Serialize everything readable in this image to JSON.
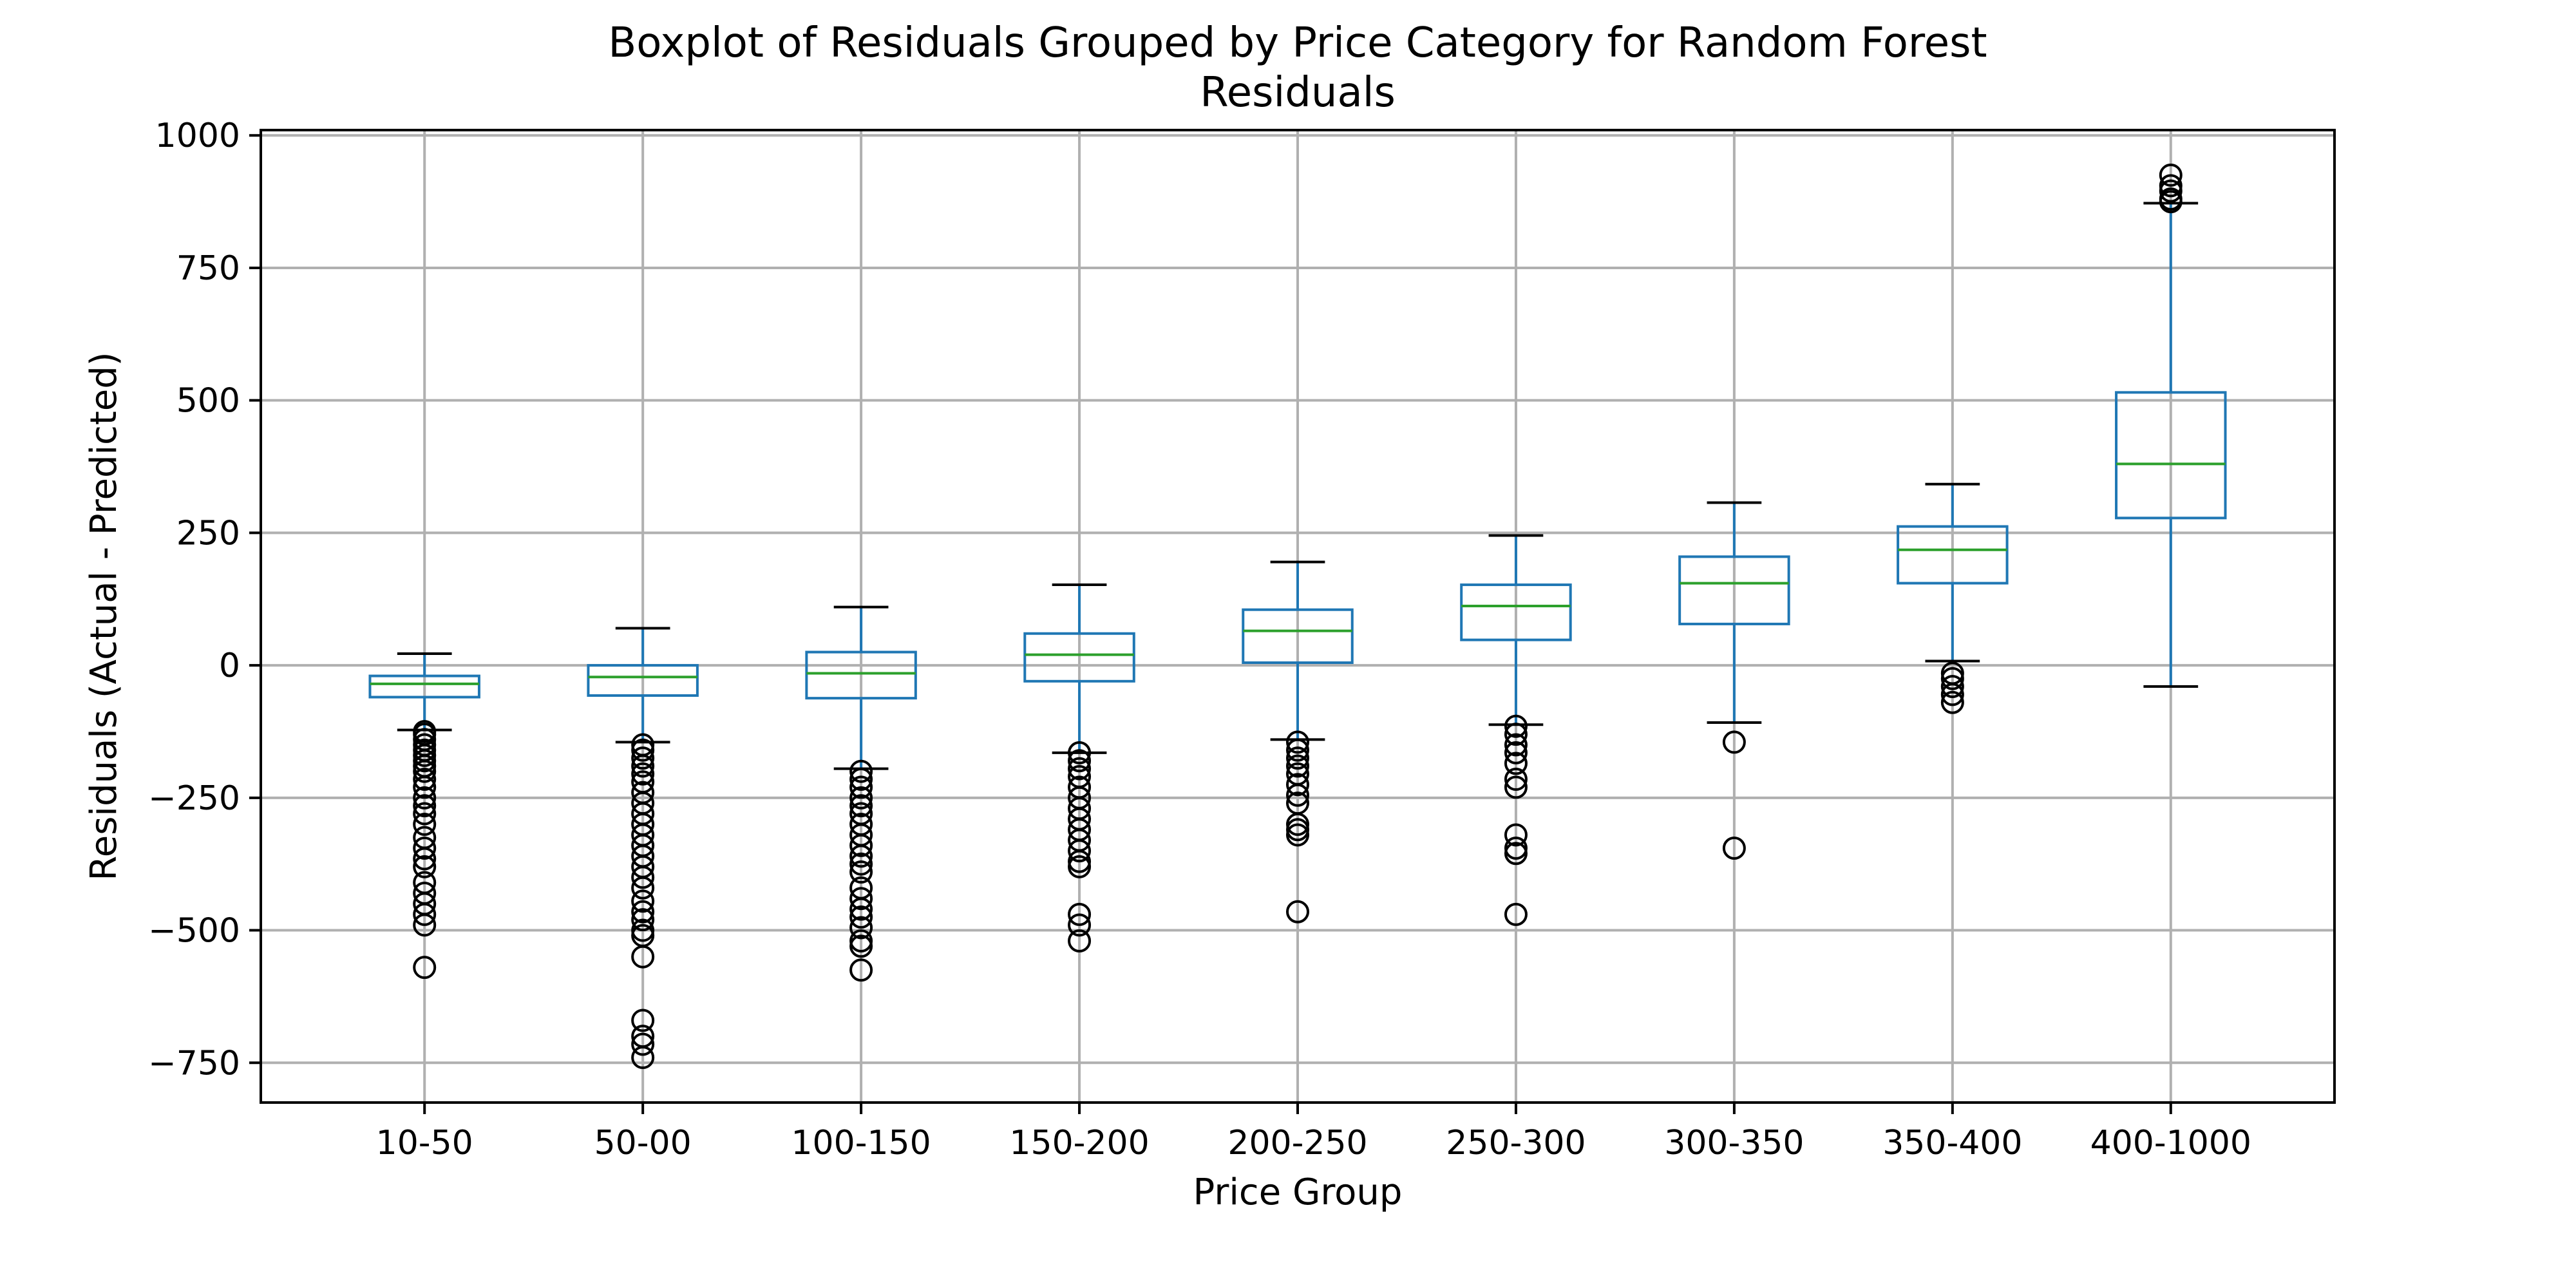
{
  "chart_data": {
    "type": "boxplot",
    "title_line1": "Boxplot of Residuals Grouped by Price Category for Random Forest",
    "title_line2": "Residuals",
    "xlabel": "Price Group",
    "ylabel": "Residuals (Actual - Predicted)",
    "ylim": [
      -825,
      1010
    ],
    "yticks": [
      -750,
      -500,
      -250,
      0,
      250,
      500,
      750,
      1000
    ],
    "grid": true,
    "colors": {
      "box": "#1f77b4",
      "median": "#2ca02c",
      "whisker": "#1f77b4",
      "cap": "#000000",
      "flier": "#000000",
      "grid": "#b0b0b0"
    },
    "categories": [
      "10-50",
      "50-00",
      "100-150",
      "150-200",
      "200-250",
      "250-300",
      "300-350",
      "350-400",
      "400-1000"
    ],
    "boxes": [
      {
        "q1": -60,
        "median": -35,
        "q3": -20,
        "whisker_low": -122,
        "whisker_high": 22,
        "fliers": [
          -125,
          -130,
          -140,
          -150,
          -160,
          -170,
          -180,
          -190,
          -200,
          -215,
          -230,
          -250,
          -265,
          -280,
          -300,
          -325,
          -345,
          -365,
          -380,
          -410,
          -430,
          -450,
          -470,
          -490,
          -570
        ]
      },
      {
        "q1": -57,
        "median": -22,
        "q3": 0,
        "whisker_low": -145,
        "whisker_high": 70,
        "fliers": [
          -150,
          -160,
          -175,
          -190,
          -205,
          -220,
          -240,
          -260,
          -280,
          -300,
          -320,
          -340,
          -360,
          -380,
          -400,
          -420,
          -445,
          -465,
          -480,
          -500,
          -510,
          -550,
          -670,
          -700,
          -715,
          -740
        ]
      },
      {
        "q1": -62,
        "median": -15,
        "q3": 25,
        "whisker_low": -195,
        "whisker_high": 110,
        "fliers": [
          -200,
          -215,
          -230,
          -250,
          -265,
          -280,
          -300,
          -320,
          -340,
          -360,
          -375,
          -390,
          -420,
          -440,
          -460,
          -475,
          -495,
          -520,
          -530,
          -575
        ]
      },
      {
        "q1": -30,
        "median": 20,
        "q3": 60,
        "whisker_low": -165,
        "whisker_high": 152,
        "fliers": [
          -165,
          -180,
          -195,
          -210,
          -230,
          -250,
          -270,
          -290,
          -310,
          -330,
          -350,
          -370,
          -380,
          -470,
          -490,
          -520
        ]
      },
      {
        "q1": 5,
        "median": 65,
        "q3": 105,
        "whisker_low": -140,
        "whisker_high": 195,
        "fliers": [
          -145,
          -160,
          -175,
          -190,
          -205,
          -225,
          -245,
          -260,
          -300,
          -310,
          -320,
          -465
        ]
      },
      {
        "q1": 48,
        "median": 112,
        "q3": 152,
        "whisker_low": -112,
        "whisker_high": 245,
        "fliers": [
          -115,
          -130,
          -150,
          -165,
          -185,
          -215,
          -230,
          -320,
          -345,
          -355,
          -470
        ]
      },
      {
        "q1": 78,
        "median": 155,
        "q3": 205,
        "whisker_low": -108,
        "whisker_high": 307,
        "fliers": [
          -145,
          -345
        ]
      },
      {
        "q1": 155,
        "median": 218,
        "q3": 262,
        "whisker_low": 8,
        "whisker_high": 342,
        "fliers": [
          -15,
          -25,
          -40,
          -55,
          -70
        ]
      },
      {
        "q1": 278,
        "median": 380,
        "q3": 515,
        "whisker_low": -40,
        "whisker_high": 872,
        "fliers": [
          875,
          880,
          895,
          905,
          925
        ]
      }
    ]
  }
}
